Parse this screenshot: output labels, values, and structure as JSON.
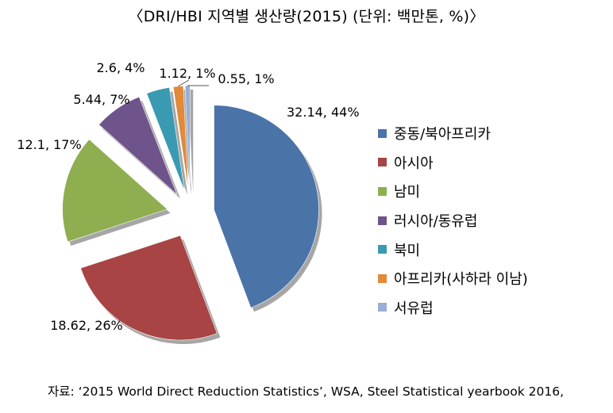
{
  "title": "〈DRI/HBI 지역별 생산량(2015) (단위: 백만톤, %)〉",
  "chart_data": {
    "type": "pie",
    "exploded": true,
    "start": "12 o'clock, clockwise",
    "legend_position": "right",
    "slices": [
      {
        "name": "중동/북아프리카",
        "value": 32.14,
        "percent": 44,
        "label": "32.14, 44%",
        "color": "#4A73A8"
      },
      {
        "name": "아시아",
        "value": 18.62,
        "percent": 26,
        "label": "18.62, 26%",
        "color": "#A84444"
      },
      {
        "name": "남미",
        "value": 12.1,
        "percent": 17,
        "label": "12.1, 17%",
        "color": "#8EAE4F"
      },
      {
        "name": "러시아/동유럽",
        "value": 5.44,
        "percent": 7,
        "label": "5.44, 7%",
        "color": "#6E548A"
      },
      {
        "name": "북미",
        "value": 2.6,
        "percent": 4,
        "label": "2.6, 4%",
        "color": "#3A9AB2"
      },
      {
        "name": "아프리카(사하라 이남)",
        "value": 1.12,
        "percent": 1,
        "label": "1.12, 1%",
        "color": "#E08A3A"
      },
      {
        "name": "서유럽",
        "value": 0.55,
        "percent": 1,
        "label": "0.55, 1%",
        "color": "#98AED6"
      }
    ]
  },
  "source": "자료: ‘2015 World Direct Reduction Statistics’, WSA, Steel Statistical yearbook 2016,"
}
